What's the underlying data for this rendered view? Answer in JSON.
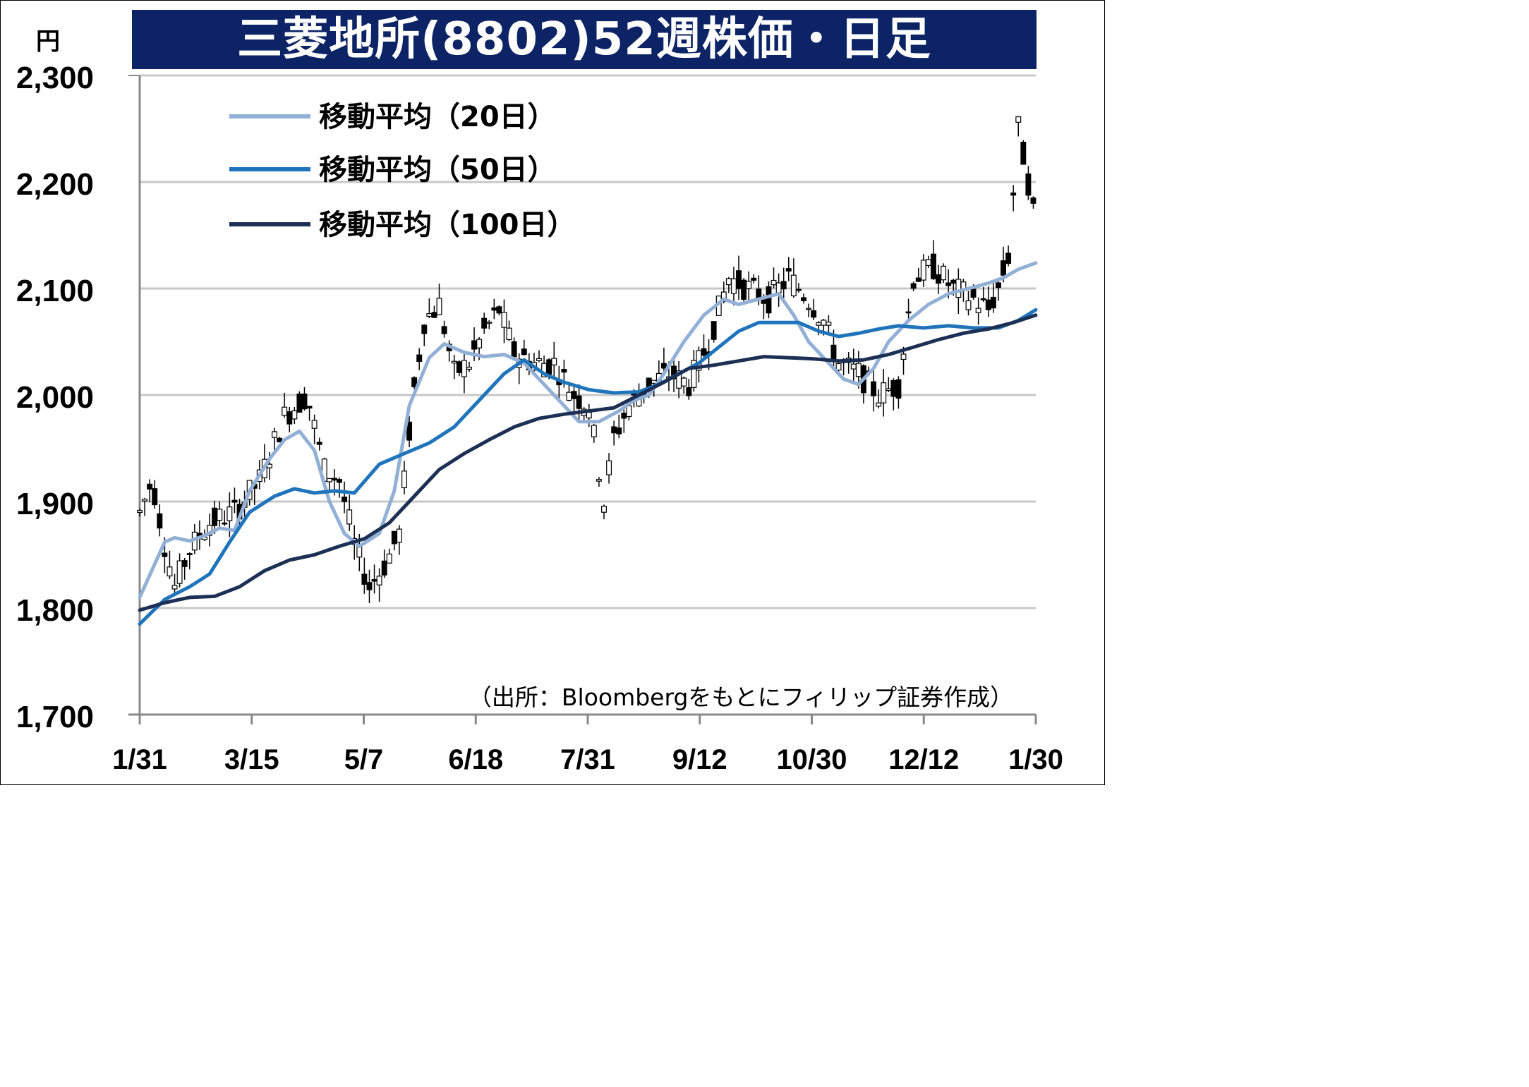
{
  "title": "三菱地所(8802)52週株価・日足",
  "source": "（出所：Bloombergをもとにフィリップ証券作成）",
  "colors": {
    "title_bg": "#0c2465",
    "ma20": "#92afd6",
    "ma50": "#1f74bb",
    "ma100": "#1c2f55",
    "candle": "#000000",
    "grid": "#c8c8c8"
  },
  "chart_data": {
    "type": "candlestick",
    "yunit": "円",
    "ylim": [
      1700,
      2300
    ],
    "yticks": [
      1700,
      1800,
      1900,
      2000,
      2100,
      2200,
      2300
    ],
    "ytick_labels": [
      "1,700",
      "1,800",
      "1,900",
      "2,000",
      "2,100",
      "2,200",
      "2,300"
    ],
    "x_tick_labels": [
      "1/31",
      "3/15",
      "5/7",
      "6/18",
      "7/31",
      "9/12",
      "10/30",
      "12/12",
      "1/30"
    ],
    "grid": "horizontal",
    "legend_position": "top-left",
    "legend": [
      "移動平均（20日）",
      "移動平均（50日）",
      "移動平均（100日）"
    ],
    "price_keypoints": [
      [
        0,
        1890
      ],
      [
        5,
        1920
      ],
      [
        10,
        1860
      ],
      [
        14,
        1820
      ],
      [
        20,
        1855
      ],
      [
        28,
        1880
      ],
      [
        38,
        1890
      ],
      [
        48,
        1920
      ],
      [
        58,
        1980
      ],
      [
        67,
        2000
      ],
      [
        74,
        1930
      ],
      [
        80,
        1920
      ],
      [
        86,
        1860
      ],
      [
        92,
        1820
      ],
      [
        98,
        1840
      ],
      [
        104,
        1870
      ],
      [
        109,
        1990
      ],
      [
        114,
        2070
      ],
      [
        120,
        2085
      ],
      [
        126,
        2020
      ],
      [
        132,
        2030
      ],
      [
        138,
        2060
      ],
      [
        144,
        2080
      ],
      [
        150,
        2040
      ],
      [
        158,
        2030
      ],
      [
        166,
        2030
      ],
      [
        174,
        2000
      ],
      [
        180,
        1990
      ],
      [
        186,
        1900
      ],
      [
        190,
        1960
      ],
      [
        196,
        1990
      ],
      [
        204,
        2010
      ],
      [
        212,
        2020
      ],
      [
        220,
        2010
      ],
      [
        228,
        2050
      ],
      [
        236,
        2110
      ],
      [
        244,
        2100
      ],
      [
        252,
        2090
      ],
      [
        260,
        2110
      ],
      [
        268,
        2090
      ],
      [
        274,
        2070
      ],
      [
        280,
        2030
      ],
      [
        288,
        2020
      ],
      [
        296,
        2000
      ],
      [
        304,
        2010
      ],
      [
        310,
        2110
      ],
      [
        318,
        2120
      ],
      [
        326,
        2100
      ],
      [
        334,
        2090
      ],
      [
        340,
        2080
      ],
      [
        344,
        2100
      ],
      [
        348,
        2130
      ],
      [
        352,
        2250
      ],
      [
        356,
        2200
      ],
      [
        359,
        2160
      ]
    ],
    "series": [
      {
        "name": "移動平均（20日）",
        "key": "ma20",
        "points": [
          [
            0,
            1810
          ],
          [
            10,
            1862
          ],
          [
            14,
            1866
          ],
          [
            20,
            1863
          ],
          [
            26,
            1868
          ],
          [
            32,
            1875
          ],
          [
            38,
            1873
          ],
          [
            44,
            1910
          ],
          [
            52,
            1940
          ],
          [
            58,
            1958
          ],
          [
            64,
            1966
          ],
          [
            70,
            1948
          ],
          [
            76,
            1900
          ],
          [
            82,
            1870
          ],
          [
            88,
            1858
          ],
          [
            96,
            1870
          ],
          [
            102,
            1910
          ],
          [
            108,
            1990
          ],
          [
            116,
            2035
          ],
          [
            122,
            2048
          ],
          [
            130,
            2040
          ],
          [
            138,
            2036
          ],
          [
            146,
            2038
          ],
          [
            154,
            2030
          ],
          [
            162,
            2010
          ],
          [
            170,
            1990
          ],
          [
            176,
            1975
          ],
          [
            184,
            1975
          ],
          [
            192,
            1985
          ],
          [
            198,
            1995
          ],
          [
            204,
            2000
          ],
          [
            210,
            2020
          ],
          [
            218,
            2050
          ],
          [
            226,
            2075
          ],
          [
            234,
            2090
          ],
          [
            240,
            2085
          ],
          [
            248,
            2090
          ],
          [
            256,
            2095
          ],
          [
            262,
            2075
          ],
          [
            268,
            2050
          ],
          [
            276,
            2030
          ],
          [
            282,
            2015
          ],
          [
            288,
            2010
          ],
          [
            294,
            2025
          ],
          [
            300,
            2050
          ],
          [
            308,
            2070
          ],
          [
            316,
            2085
          ],
          [
            324,
            2095
          ],
          [
            332,
            2100
          ],
          [
            340,
            2105
          ],
          [
            346,
            2110
          ],
          [
            352,
            2118
          ],
          [
            359,
            2124
          ]
        ]
      },
      {
        "name": "移動平均（50日）",
        "key": "ma50",
        "points": [
          [
            0,
            1785
          ],
          [
            10,
            1808
          ],
          [
            20,
            1820
          ],
          [
            28,
            1832
          ],
          [
            36,
            1862
          ],
          [
            44,
            1890
          ],
          [
            54,
            1905
          ],
          [
            62,
            1912
          ],
          [
            70,
            1908
          ],
          [
            78,
            1910
          ],
          [
            86,
            1908
          ],
          [
            96,
            1935
          ],
          [
            106,
            1945
          ],
          [
            116,
            1955
          ],
          [
            126,
            1970
          ],
          [
            136,
            1995
          ],
          [
            146,
            2020
          ],
          [
            154,
            2033
          ],
          [
            162,
            2020
          ],
          [
            170,
            2012
          ],
          [
            180,
            2005
          ],
          [
            190,
            2002
          ],
          [
            200,
            2003
          ],
          [
            208,
            2010
          ],
          [
            216,
            2020
          ],
          [
            224,
            2030
          ],
          [
            232,
            2045
          ],
          [
            240,
            2060
          ],
          [
            248,
            2068
          ],
          [
            256,
            2068
          ],
          [
            264,
            2068
          ],
          [
            272,
            2060
          ],
          [
            280,
            2055
          ],
          [
            288,
            2058
          ],
          [
            296,
            2062
          ],
          [
            304,
            2065
          ],
          [
            314,
            2063
          ],
          [
            324,
            2065
          ],
          [
            334,
            2063
          ],
          [
            344,
            2063
          ],
          [
            352,
            2070
          ],
          [
            359,
            2080
          ]
        ]
      },
      {
        "name": "移動平均（100日）",
        "key": "ma100",
        "points": [
          [
            0,
            1798
          ],
          [
            10,
            1805
          ],
          [
            20,
            1810
          ],
          [
            30,
            1811
          ],
          [
            40,
            1820
          ],
          [
            50,
            1835
          ],
          [
            60,
            1845
          ],
          [
            70,
            1850
          ],
          [
            80,
            1858
          ],
          [
            90,
            1865
          ],
          [
            100,
            1880
          ],
          [
            110,
            1905
          ],
          [
            120,
            1930
          ],
          [
            130,
            1945
          ],
          [
            140,
            1958
          ],
          [
            150,
            1970
          ],
          [
            160,
            1978
          ],
          [
            170,
            1982
          ],
          [
            180,
            1985
          ],
          [
            190,
            1988
          ],
          [
            200,
            2000
          ],
          [
            210,
            2012
          ],
          [
            220,
            2025
          ],
          [
            230,
            2028
          ],
          [
            240,
            2032
          ],
          [
            250,
            2036
          ],
          [
            260,
            2035
          ],
          [
            270,
            2034
          ],
          [
            280,
            2032
          ],
          [
            290,
            2033
          ],
          [
            300,
            2038
          ],
          [
            310,
            2045
          ],
          [
            320,
            2052
          ],
          [
            330,
            2058
          ],
          [
            340,
            2062
          ],
          [
            350,
            2068
          ],
          [
            359,
            2075
          ]
        ]
      }
    ]
  }
}
